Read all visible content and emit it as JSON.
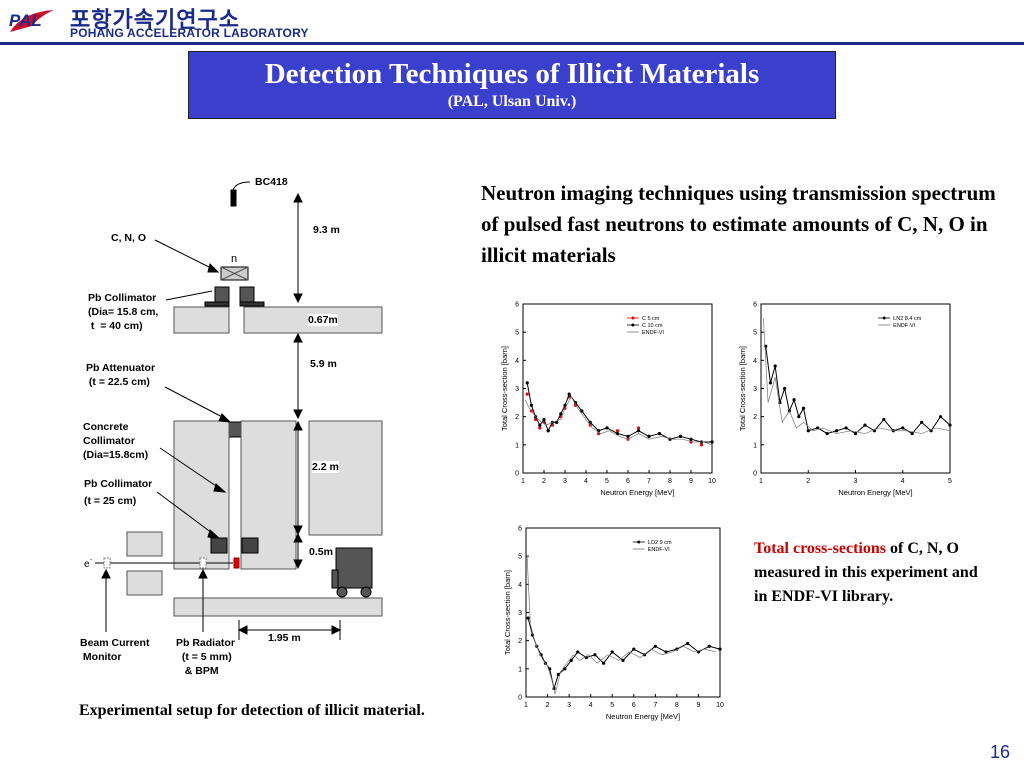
{
  "header": {
    "logo_text": "PAL",
    "org_korean": "포항가속기연구소",
    "org_english": "POHANG ACCELERATOR LABORATORY",
    "rule_color": "#1a2a8a"
  },
  "title": {
    "main": "Detection Techniques of Illicit Materials",
    "sub": "(PAL, Ulsan Univ.)",
    "background": "#3a3fcc"
  },
  "description": "Neutron imaging techniques using transmission spectrum of pulsed fast neutrons to estimate amounts of  C, N, O in illicit materials",
  "diagram": {
    "labels": {
      "detector": "BC418",
      "sample": "C, N, O",
      "neutron": "n",
      "pb_collimator_top": "Pb Collimator\n(Dia= 15.8 cm,\n t  = 40 cm)",
      "pb_attenuator": "Pb Attenuator\n (t = 22.5 cm)",
      "concrete_collimator": "Concrete\nCollimator\n(Dia=15.8cm)",
      "pb_collimator_bottom": "Pb Collimator\n(t = 25 cm)",
      "electron": "e",
      "beam_current_monitor": "Beam Current\n Monitor",
      "pb_radiator": "Pb Radiator\n  (t = 5 mm)\n   & BPM"
    },
    "dimensions": {
      "d1": "9.3 m",
      "d2": "0.67m",
      "d3": "5.9 m",
      "d4": "2.2 m",
      "d5": "0.5m",
      "d6": "1.95 m"
    }
  },
  "caption": "Experimental setup for detection of illicit material.",
  "plot_caption": {
    "highlight": "Total cross-sections",
    "rest": " of C, N, O measured in this experiment and in ENDF-VI library.",
    "highlight_color": "#cc0000"
  },
  "chart_data": [
    {
      "type": "line",
      "xlabel": "Neutron Energy [MeV]",
      "ylabel": "Total Cross-section [barn]",
      "xlim": [
        1,
        10
      ],
      "ylim": [
        0,
        6
      ],
      "xticks": [
        "1",
        "2",
        "3",
        "4",
        "5",
        "6",
        "7",
        "8",
        "9",
        "10"
      ],
      "yticks": [
        "0",
        "1",
        "2",
        "3",
        "4",
        "5",
        "6"
      ],
      "series": [
        {
          "name": "C 5 cm",
          "color": "#ee0000",
          "x": [
            1.2,
            1.4,
            1.6,
            1.8,
            2.0,
            2.2,
            2.4,
            2.6,
            2.8,
            3.0,
            3.2,
            3.5,
            3.8,
            4.2,
            4.6,
            5.0,
            5.5,
            6.0,
            6.5,
            7.0,
            7.5,
            8.0,
            8.5,
            9.0,
            9.5,
            10.0
          ],
          "y": [
            2.8,
            2.2,
            1.9,
            1.6,
            1.8,
            1.5,
            1.7,
            1.8,
            2.0,
            2.3,
            2.7,
            2.4,
            2.2,
            1.7,
            1.4,
            1.6,
            1.5,
            1.2,
            1.6,
            1.3,
            1.4,
            1.2,
            1.3,
            1.1,
            1.0,
            1.1
          ]
        },
        {
          "name": "C 10 cm",
          "color": "#000000",
          "x": [
            1.2,
            1.4,
            1.6,
            1.8,
            2.0,
            2.2,
            2.4,
            2.6,
            2.8,
            3.0,
            3.2,
            3.5,
            3.8,
            4.2,
            4.6,
            5.0,
            5.5,
            6.0,
            6.5,
            7.0,
            7.5,
            8.0,
            8.5,
            9.0,
            9.5,
            10.0
          ],
          "y": [
            3.2,
            2.4,
            2.0,
            1.7,
            1.9,
            1.5,
            1.8,
            1.8,
            2.1,
            2.4,
            2.8,
            2.5,
            2.2,
            1.8,
            1.5,
            1.6,
            1.4,
            1.3,
            1.5,
            1.3,
            1.4,
            1.2,
            1.3,
            1.2,
            1.1,
            1.1
          ]
        },
        {
          "name": "ENDF-VI",
          "color": "#777777",
          "x": [
            1.1,
            1.3,
            1.6,
            1.9,
            2.1,
            2.4,
            2.8,
            3.0,
            3.3,
            3.6,
            3.9,
            4.3,
            4.7,
            5.1,
            5.6,
            6.0,
            6.5,
            7.0,
            7.6,
            8.1,
            8.6,
            9.1,
            9.6,
            10.0
          ],
          "y": [
            2.6,
            2.3,
            2.0,
            1.8,
            1.7,
            1.8,
            1.9,
            2.3,
            2.7,
            2.3,
            2.0,
            1.6,
            1.4,
            1.5,
            1.3,
            1.2,
            1.4,
            1.2,
            1.3,
            1.2,
            1.2,
            1.1,
            1.1,
            1.0
          ]
        }
      ]
    },
    {
      "type": "line",
      "xlabel": "Neutron Energy [MeV]",
      "ylabel": "Total Cross-section [barn]",
      "xlim": [
        1,
        5
      ],
      "ylim": [
        0,
        6
      ],
      "xticks": [
        "1",
        "2",
        "3",
        "4",
        "5"
      ],
      "yticks": [
        "0",
        "1",
        "2",
        "3",
        "4",
        "5",
        "6"
      ],
      "series": [
        {
          "name": "LN2 8.4 cm",
          "color": "#000000",
          "x": [
            1.1,
            1.2,
            1.3,
            1.4,
            1.5,
            1.6,
            1.7,
            1.8,
            1.9,
            2.0,
            2.2,
            2.4,
            2.6,
            2.8,
            3.0,
            3.2,
            3.4,
            3.6,
            3.8,
            4.0,
            4.2,
            4.4,
            4.6,
            4.8,
            5.0
          ],
          "y": [
            4.5,
            3.2,
            3.8,
            2.5,
            3.0,
            2.2,
            2.6,
            2.0,
            2.3,
            1.5,
            1.6,
            1.4,
            1.5,
            1.6,
            1.4,
            1.7,
            1.5,
            1.9,
            1.5,
            1.6,
            1.4,
            1.8,
            1.5,
            2.0,
            1.7
          ]
        },
        {
          "name": "ENDF-VI",
          "color": "#777777",
          "x": [
            1.05,
            1.15,
            1.3,
            1.45,
            1.6,
            1.75,
            1.9,
            2.1,
            2.3,
            2.6,
            2.9,
            3.2,
            3.5,
            3.8,
            4.1,
            4.4,
            4.7,
            5.0
          ],
          "y": [
            5.5,
            2.5,
            3.4,
            1.8,
            2.2,
            1.6,
            1.8,
            1.5,
            1.6,
            1.4,
            1.5,
            1.4,
            1.6,
            1.5,
            1.5,
            1.4,
            1.6,
            1.5
          ]
        }
      ]
    },
    {
      "type": "line",
      "xlabel": "Neutron Energy [MeV]",
      "ylabel": "Total Cross-section [barn]",
      "xlim": [
        1,
        10
      ],
      "ylim": [
        0,
        6
      ],
      "xticks": [
        "1",
        "2",
        "3",
        "4",
        "5",
        "6",
        "7",
        "8",
        "9",
        "10"
      ],
      "yticks": [
        "0",
        "1",
        "2",
        "3",
        "4",
        "5",
        "6"
      ],
      "series": [
        {
          "name": "LO2 9 cm",
          "color": "#000000",
          "x": [
            1.1,
            1.3,
            1.5,
            1.7,
            1.9,
            2.1,
            2.3,
            2.5,
            2.8,
            3.1,
            3.4,
            3.8,
            4.2,
            4.6,
            5.0,
            5.5,
            6.0,
            6.5,
            7.0,
            7.5,
            8.0,
            8.5,
            9.0,
            9.5,
            10.0
          ],
          "y": [
            2.8,
            2.2,
            1.8,
            1.5,
            1.2,
            1.0,
            0.3,
            0.8,
            1.0,
            1.3,
            1.6,
            1.4,
            1.5,
            1.2,
            1.6,
            1.3,
            1.7,
            1.5,
            1.8,
            1.6,
            1.7,
            1.9,
            1.6,
            1.8,
            1.7
          ]
        },
        {
          "name": "ENDF-VI",
          "color": "#777777",
          "x": [
            1.05,
            1.2,
            1.4,
            1.6,
            1.8,
            2.0,
            2.2,
            2.35,
            2.6,
            2.9,
            3.2,
            3.5,
            3.9,
            4.3,
            4.8,
            5.3,
            5.8,
            6.3,
            6.8,
            7.3,
            7.8,
            8.3,
            8.8,
            9.3,
            9.8
          ],
          "y": [
            5.0,
            2.6,
            2.0,
            1.6,
            1.3,
            1.1,
            0.6,
            0.1,
            0.9,
            1.2,
            1.5,
            1.3,
            1.5,
            1.2,
            1.5,
            1.3,
            1.6,
            1.4,
            1.7,
            1.5,
            1.6,
            1.8,
            1.6,
            1.7,
            1.6
          ]
        }
      ]
    }
  ]
}
